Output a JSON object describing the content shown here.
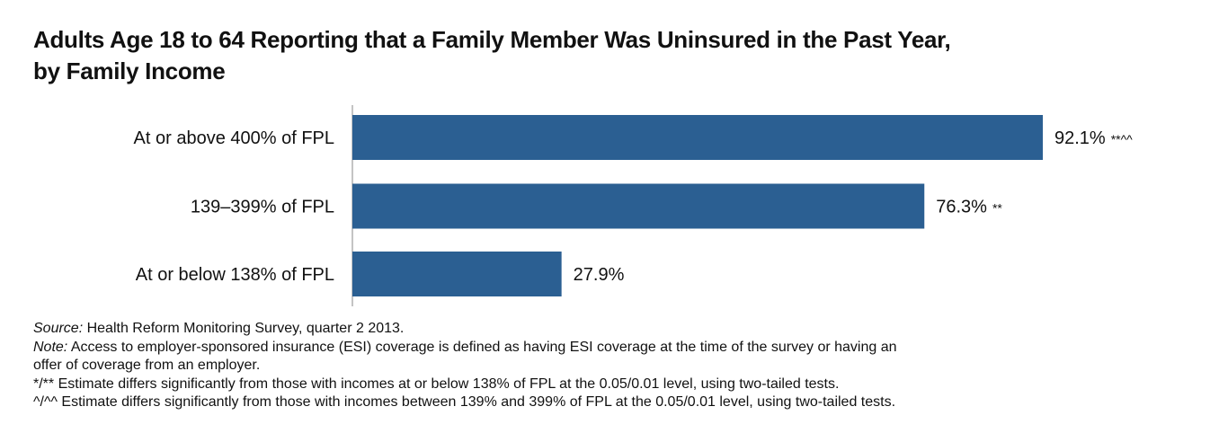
{
  "chart_data": {
    "type": "bar",
    "orientation": "horizontal",
    "title_line1": "Adults Age 18 to 64 Reporting that a Family Member Was Uninsured in the Past Year,",
    "title_line2": "by Family Income",
    "categories": [
      "At or above 400% of FPL",
      "139–399% of FPL",
      "At or below 138% of FPL"
    ],
    "values": [
      92.1,
      76.3,
      27.9
    ],
    "data_labels": [
      "92.1%",
      "76.3%",
      "27.9%"
    ],
    "significance_marks": [
      "**^^",
      "**",
      ""
    ],
    "xlim": [
      0,
      100
    ],
    "grid": false,
    "bar_color": "#2b5f92"
  },
  "notes": {
    "source_label": "Source:",
    "source_text": " Health Reform Monitoring Survey, quarter 2 2013.",
    "note_label": "Note:",
    "note_text": " Access to employer-sponsored insurance (ESI) coverage is defined as having ESI coverage at the time of the survey or having an",
    "note_text2": "offer of coverage from an employer.",
    "sig1": "*/** Estimate differs significantly from those with incomes at or below 138% of FPL at the 0.05/0.01 level, using two-tailed tests.",
    "sig2": "^/^^ Estimate differs significantly from those with incomes between 139% and 399% of FPL at the 0.05/0.01 level, using two-tailed tests."
  }
}
